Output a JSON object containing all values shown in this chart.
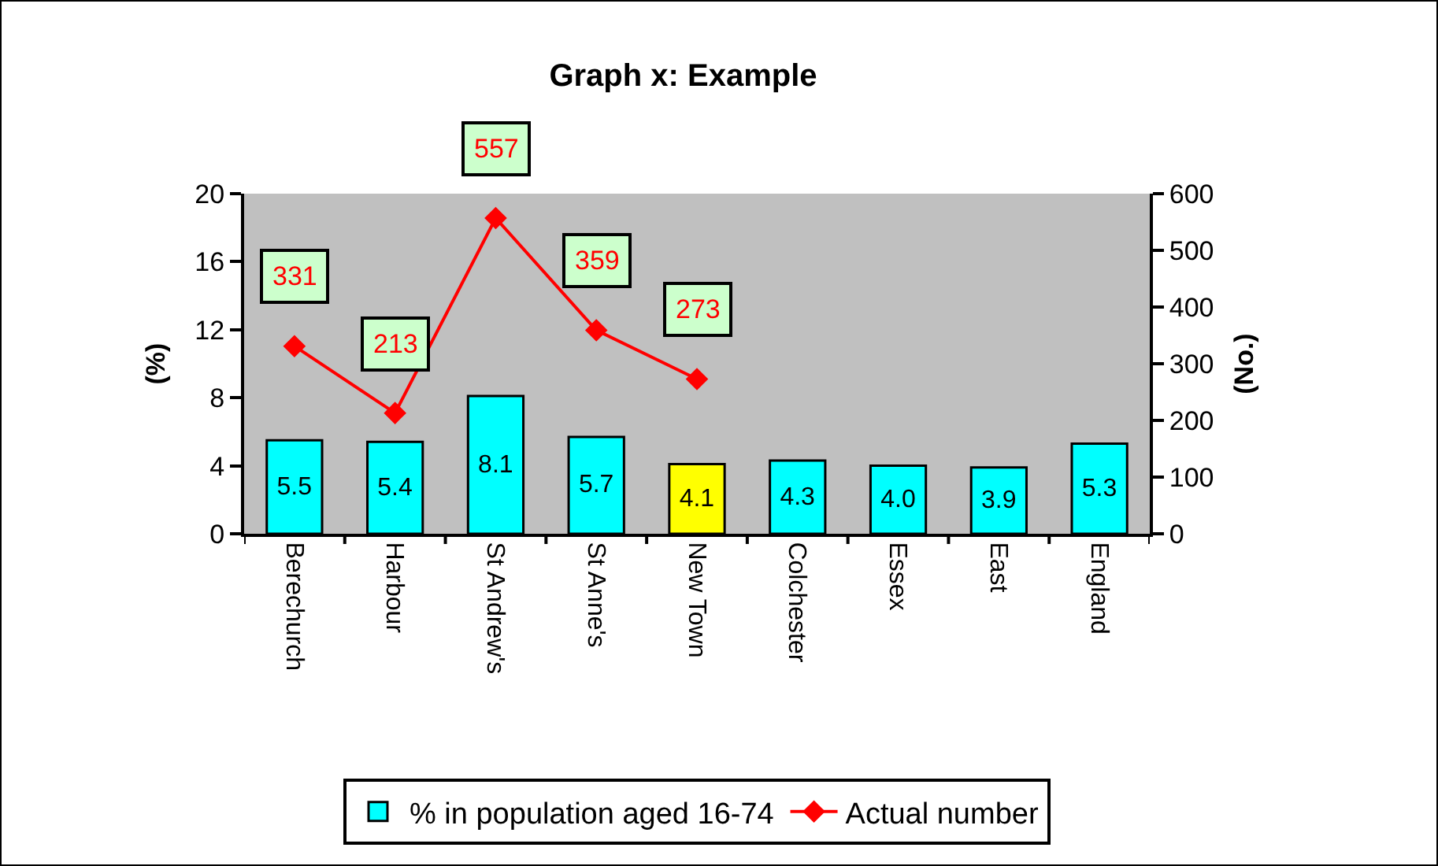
{
  "chart_data": {
    "type": "bar",
    "title": "Graph x: Example",
    "ylabel": "(%)",
    "y2label": "(No.)",
    "categories": [
      "Berechurch",
      "Harbour",
      "St Andrew's",
      "St Anne's",
      "New Town",
      "Colchester",
      "Essex",
      "East",
      "England"
    ],
    "series": [
      {
        "name": "% in population aged 16-74",
        "colors": [
          "#00ffff",
          "#00ffff",
          "#00ffff",
          "#00ffff",
          "#ffff00",
          "#00ffff",
          "#00ffff",
          "#00ffff",
          "#00ffff"
        ],
        "values": [
          5.5,
          5.4,
          8.1,
          5.7,
          4.1,
          4.3,
          4.0,
          3.9,
          5.3
        ],
        "value_labels": [
          "5.5",
          "5.4",
          "8.1",
          "5.7",
          "4.1",
          "4.3",
          "4.0",
          "3.9",
          "5.3"
        ]
      },
      {
        "name": "Actual number",
        "type": "line",
        "axis": "y2",
        "color": "#ff0000",
        "values": [
          331,
          213,
          557,
          359,
          273,
          null,
          null,
          null,
          null
        ],
        "value_labels": [
          "331",
          "213",
          "557",
          "359",
          "273",
          null,
          null,
          null,
          null
        ]
      }
    ],
    "ylim": [
      0,
      20
    ],
    "yticks": [
      0,
      4,
      8,
      12,
      16,
      20
    ],
    "y2lim": [
      0,
      600
    ],
    "y2ticks": [
      0,
      100,
      200,
      300,
      400,
      500,
      600
    ],
    "marker": "diamond",
    "line_style": "solid",
    "grid": false,
    "legend": "bottom"
  }
}
